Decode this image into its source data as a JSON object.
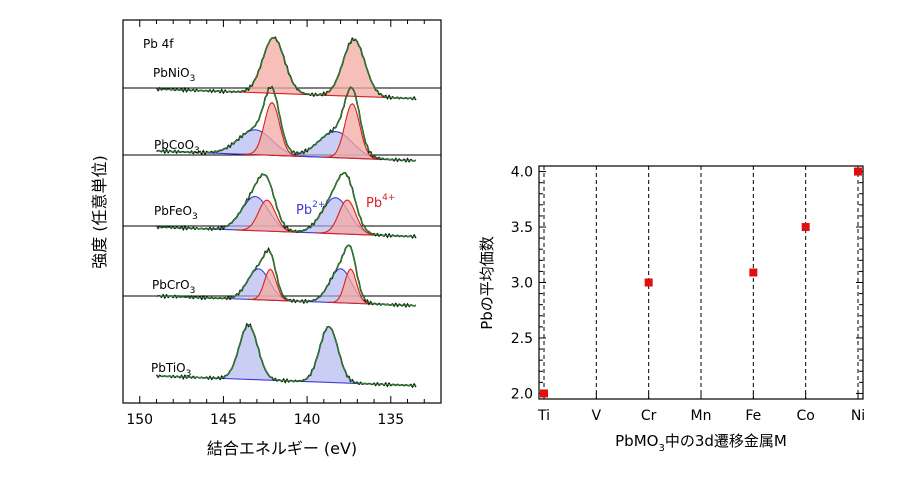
{
  "chart_data": [
    {
      "type": "line",
      "panel_title": "Pb 4f",
      "xlabel": "結合エネルギー (eV)",
      "ylabel": "強度 (任意単位)",
      "xlim": [
        151,
        132
      ],
      "x_reversed": true,
      "x_ticks": [
        150,
        145,
        140,
        135
      ],
      "series_colors": {
        "Pb4+": "#d62222",
        "Pb2+": "#3b3bd8",
        "fit": "#2c8a2c",
        "data": "#111111"
      },
      "annotations": [
        {
          "text": "Pb2+",
          "base": "Pb",
          "sup": "2+",
          "color": "#3b3bd8"
        },
        {
          "text": "Pb4+",
          "base": "Pb",
          "sup": "4+",
          "color": "#d62222"
        }
      ],
      "spectra": [
        {
          "compound": "PbNiO3",
          "formula_base": "PbNiO",
          "formula_sub": "3",
          "pb4_peaks": [
            {
              "x": 142.0,
              "h": 0.9,
              "w": 0.65
            },
            {
              "x": 137.2,
              "h": 0.92,
              "w": 0.65
            }
          ],
          "pb2_peaks": []
        },
        {
          "compound": "PbCoO3",
          "formula_base": "PbCoO",
          "formula_sub": "3",
          "pb4_peaks": [
            {
              "x": 142.1,
              "h": 0.85,
              "w": 0.45
            },
            {
              "x": 137.3,
              "h": 0.88,
              "w": 0.45
            }
          ],
          "pb2_peaks": [
            {
              "x": 143.1,
              "h": 0.4,
              "w": 1.0
            },
            {
              "x": 138.3,
              "h": 0.42,
              "w": 1.0
            }
          ]
        },
        {
          "compound": "PbFeO3",
          "formula_base": "PbFeO",
          "formula_sub": "3",
          "pb4_peaks": [
            {
              "x": 142.4,
              "h": 0.5,
              "w": 0.5
            },
            {
              "x": 137.6,
              "h": 0.55,
              "w": 0.5
            }
          ],
          "pb2_peaks": [
            {
              "x": 143.1,
              "h": 0.55,
              "w": 0.8
            },
            {
              "x": 138.3,
              "h": 0.58,
              "w": 0.8
            }
          ]
        },
        {
          "compound": "PbCrO3",
          "formula_base": "PbCrO",
          "formula_sub": "3",
          "pb4_peaks": [
            {
              "x": 142.2,
              "h": 0.5,
              "w": 0.35
            },
            {
              "x": 137.4,
              "h": 0.55,
              "w": 0.35
            }
          ],
          "pb2_peaks": [
            {
              "x": 142.9,
              "h": 0.5,
              "w": 0.65
            },
            {
              "x": 138.0,
              "h": 0.55,
              "w": 0.65
            }
          ]
        },
        {
          "compound": "PbTiO3",
          "formula_base": "PbTiO",
          "formula_sub": "3",
          "pb4_peaks": [],
          "pb2_peaks": [
            {
              "x": 143.5,
              "h": 0.88,
              "w": 0.55
            },
            {
              "x": 138.7,
              "h": 0.9,
              "w": 0.55
            }
          ]
        }
      ]
    },
    {
      "type": "scatter",
      "xlabel": "PbMO3中の3d遷移金属M",
      "xlabel_parts": {
        "a": "PbMO",
        "sub": "3",
        "b": "中の3d遷移金属M"
      },
      "ylabel": "Pbの平均価数",
      "categories": [
        "Ti",
        "V",
        "Cr",
        "Mn",
        "Fe",
        "Co",
        "Ni"
      ],
      "ylim": [
        1.95,
        4.05
      ],
      "y_ticks": [
        "2.0",
        "2.5",
        "3.0",
        "3.5",
        "4.0"
      ],
      "marker_color": "#e01010",
      "points": [
        {
          "category": "Ti",
          "value": 2.0
        },
        {
          "category": "Cr",
          "value": 3.0
        },
        {
          "category": "Fe",
          "value": 3.09
        },
        {
          "category": "Co",
          "value": 3.5
        },
        {
          "category": "Ni",
          "value": 4.0
        }
      ]
    }
  ]
}
